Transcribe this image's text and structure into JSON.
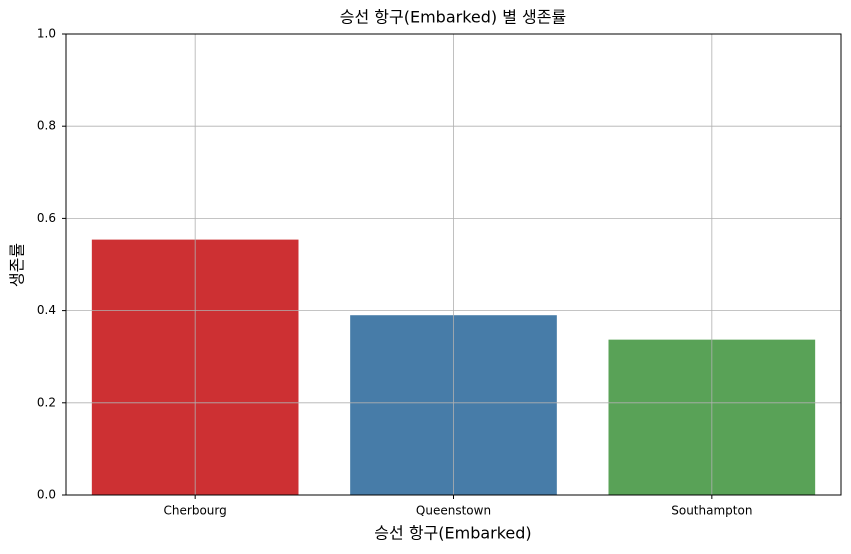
{
  "chart_data": {
    "type": "bar",
    "title": "승선 항구(Embarked) 별 생존률",
    "x_label": "승선 항구(Embarked)",
    "y_label": "생존률",
    "categories": [
      "Cherbourg",
      "Queenstown",
      "Southampton"
    ],
    "values": [
      0.554,
      0.39,
      0.337
    ],
    "colors": [
      "#cd3033",
      "#477ca8",
      "#59a257"
    ],
    "ylim": [
      0,
      1
    ],
    "yticks": [
      {
        "value": 0,
        "label": "0.0"
      },
      {
        "value": 0.2,
        "label": "0.2"
      },
      {
        "value": 0.4,
        "label": "0.4"
      },
      {
        "value": 0.6,
        "label": "0.6"
      },
      {
        "value": 0.8,
        "label": "0.8"
      },
      {
        "value": 1,
        "label": "1.0"
      }
    ],
    "grid": true
  }
}
